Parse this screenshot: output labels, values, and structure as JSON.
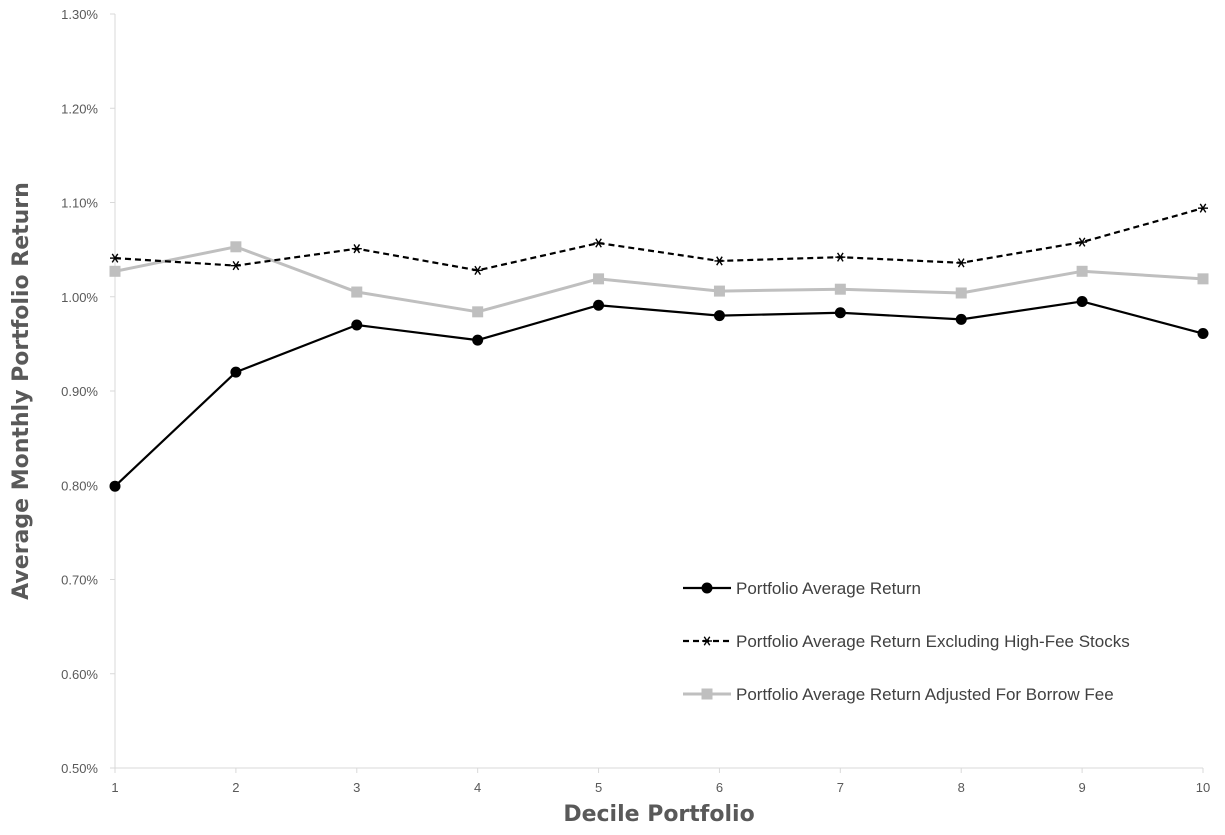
{
  "chart_data": {
    "type": "line",
    "title": "",
    "xlabel": "Decile Portfolio",
    "ylabel": "Average Monthly Portfolio Return",
    "x": [
      1,
      2,
      3,
      4,
      5,
      6,
      7,
      8,
      9,
      10
    ],
    "x_tick_labels": [
      "1",
      "2",
      "3",
      "4",
      "5",
      "6",
      "7",
      "8",
      "9",
      "10"
    ],
    "ylim": [
      0.5,
      1.3
    ],
    "y_ticks": [
      0.5,
      0.6,
      0.7,
      0.8,
      0.9,
      1.0,
      1.1,
      1.2,
      1.3
    ],
    "y_tick_labels": [
      "0.50%",
      "0.60%",
      "0.70%",
      "0.80%",
      "0.90%",
      "1.00%",
      "1.10%",
      "1.20%",
      "1.30%"
    ],
    "y_unit": "%",
    "grid": false,
    "legend_position": "bottom-right",
    "series": [
      {
        "name": "Portfolio Average Return",
        "color": "#000000",
        "line_style": "solid",
        "marker": "circle",
        "values": [
          0.799,
          0.92,
          0.97,
          0.954,
          0.991,
          0.98,
          0.983,
          0.976,
          0.995,
          0.961
        ]
      },
      {
        "name": "Portfolio Average Return Excluding High-Fee Stocks",
        "color": "#000000",
        "line_style": "dashed",
        "marker": "asterisk",
        "values": [
          1.041,
          1.033,
          1.051,
          1.028,
          1.057,
          1.038,
          1.042,
          1.036,
          1.058,
          1.094
        ]
      },
      {
        "name": "Portfolio Average Return Adjusted For Borrow Fee",
        "color": "#bfbfbf",
        "line_style": "solid",
        "marker": "square",
        "values": [
          1.027,
          1.053,
          1.005,
          0.984,
          1.019,
          1.006,
          1.008,
          1.004,
          1.027,
          1.019
        ]
      }
    ]
  }
}
